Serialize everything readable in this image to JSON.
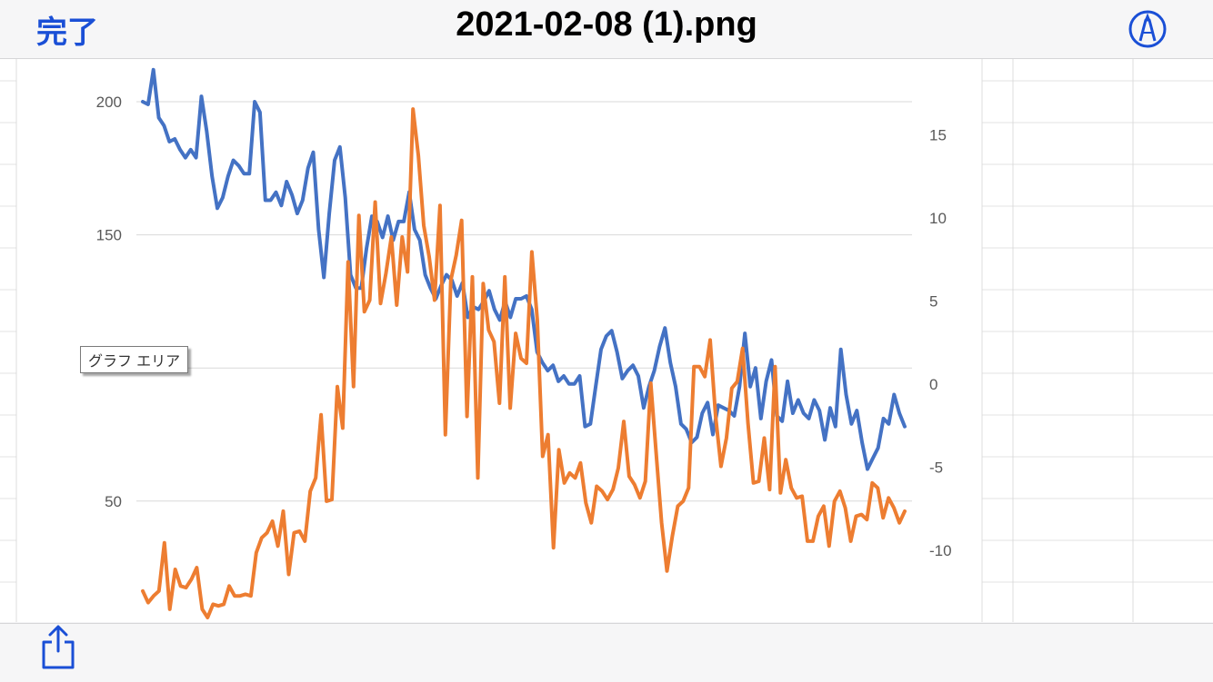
{
  "header": {
    "done_label": "完了",
    "title": "2021-02-08 (1).png",
    "markup_icon": "markup-pen-icon"
  },
  "footer": {
    "share_icon": "share-icon"
  },
  "chart_tooltip": "グラフ エリア",
  "colors": {
    "accent": "#1a4fd6",
    "series_blue": "#4472c4",
    "series_orange": "#ed7d31",
    "gridline": "#d9d9d9",
    "axis_text": "#595959"
  },
  "chart_data": {
    "type": "line",
    "left_axis": {
      "ticks": [
        50,
        100,
        150,
        200
      ],
      "range": [
        13,
        213
      ]
    },
    "right_axis": {
      "ticks": [
        -10,
        -5,
        0,
        5,
        10,
        15
      ],
      "range": [
        -14.2,
        19
      ]
    },
    "grid": true,
    "series": [
      {
        "axis": "left",
        "color": "#4472c4",
        "values": [
          200,
          199,
          212,
          194,
          191,
          185,
          186,
          182,
          179,
          182,
          179,
          202,
          189,
          172,
          160,
          164,
          172,
          178,
          176,
          173,
          173,
          200,
          196,
          163,
          163,
          166,
          161,
          170,
          165,
          158,
          163,
          175,
          181,
          152,
          134,
          158,
          178,
          183,
          164,
          135,
          130,
          130,
          145,
          157,
          155,
          149,
          157,
          148,
          155,
          155,
          166,
          152,
          148,
          135,
          130,
          126,
          131,
          135,
          133,
          127,
          132,
          119,
          123,
          122,
          125,
          129,
          122,
          118,
          125,
          119,
          126,
          126,
          127,
          122,
          106,
          102,
          99,
          101,
          95,
          97,
          94,
          94,
          97,
          78,
          79,
          93,
          107,
          112,
          114,
          106,
          96,
          99,
          101,
          97,
          85,
          93,
          99,
          108,
          115,
          102,
          93,
          79,
          77,
          72,
          74,
          83,
          87,
          75,
          86,
          85,
          84,
          82,
          93,
          113,
          93,
          100,
          81,
          95,
          103,
          82,
          80,
          95,
          83,
          88,
          83,
          81,
          88,
          84,
          73,
          85,
          78,
          107,
          90,
          79,
          84,
          72,
          62,
          66,
          70,
          81,
          79,
          90,
          83,
          78
        ],
        "note": ""
      },
      {
        "axis": "right",
        "values": [
          -12.5,
          -13.2,
          -12.8,
          -12.5,
          -9.6,
          -13.6,
          -11.2,
          -12.2,
          -12.3,
          -11.8,
          -11.1,
          -13.6,
          -14.1,
          -13.3,
          -13.4,
          -13.3,
          -12.2,
          -12.8,
          -12.8,
          -12.7,
          -12.8,
          -10.2,
          -9.3,
          -9.0,
          -8.3,
          -9.8,
          -7.7,
          -11.5,
          -9.0,
          -8.9,
          -9.5,
          -6.5,
          -5.7,
          -1.9,
          -7.1,
          -7.0,
          -0.2,
          -2.7,
          7.3,
          -0.2,
          10.1,
          4.3,
          5.0,
          10.9,
          4.8,
          6.6,
          8.8,
          4.7,
          8.8,
          6.7,
          16.5,
          13.7,
          9.5,
          7.6,
          5.0,
          10.7,
          -3.1,
          6.2,
          7.7,
          9.8,
          -2.0,
          6.4,
          -5.7,
          6.0,
          3.2,
          2.5,
          -1.2,
          6.4,
          -1.5,
          3.0,
          1.5,
          1.2,
          7.9,
          3.8,
          -4.4,
          -3.1,
          -9.9,
          -4.0,
          -6.0,
          -5.4,
          -5.7,
          -4.8,
          -7.2,
          -8.4,
          -6.2,
          -6.5,
          -7.0,
          -6.4,
          -5.1,
          -2.3,
          -5.6,
          -6.1,
          -6.9,
          -5.9,
          0.0,
          -4.2,
          -8.4,
          -11.3,
          -9.2,
          -7.4,
          -7.1,
          -6.3,
          1.0,
          1.0,
          0.4,
          2.6,
          -2.0,
          -5.0,
          -3.3,
          -0.3,
          0.1,
          2.1,
          -2.4,
          -6.0,
          -5.9,
          -3.3,
          -6.4,
          1.0,
          -6.6,
          -4.6,
          -6.3,
          -6.9,
          -6.8,
          -9.5,
          -9.5,
          -8.0,
          -7.4,
          -9.8,
          -7.1,
          -6.5,
          -7.5,
          -9.5,
          -8.0,
          -7.9,
          -8.2,
          -6.0,
          -6.3,
          -8.1,
          -6.9,
          -7.5,
          -8.4,
          -7.7
        ],
        "color": "#ed7d31"
      }
    ]
  }
}
